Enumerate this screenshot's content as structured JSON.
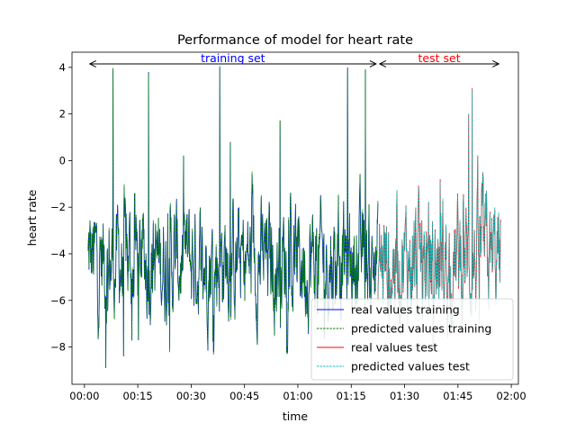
{
  "chart_data": {
    "type": "line",
    "title": "Performance of model for heart rate",
    "xlabel": "time",
    "ylabel": "heart rate",
    "x_unit": "minutes",
    "xlim": [
      -3.5,
      122
    ],
    "ylim": [
      -9.6,
      4.65
    ],
    "xticks": [
      {
        "value": 0,
        "label": "00:00"
      },
      {
        "value": 15,
        "label": "00:15"
      },
      {
        "value": 30,
        "label": "00:30"
      },
      {
        "value": 45,
        "label": "00:45"
      },
      {
        "value": 60,
        "label": "01:00"
      },
      {
        "value": 75,
        "label": "01:15"
      },
      {
        "value": 90,
        "label": "01:30"
      },
      {
        "value": 105,
        "label": "01:45"
      },
      {
        "value": 120,
        "label": "02:00"
      }
    ],
    "yticks": [
      -8,
      -6,
      -4,
      -2,
      0,
      2,
      4
    ],
    "grid": false,
    "legend_position": "lower-right",
    "training_range": [
      1,
      82.5
    ],
    "test_range": [
      82.5,
      117
    ],
    "base_level": -4.3,
    "annotations": [
      {
        "text": "training set",
        "from": 1.5,
        "to": 82,
        "y": 4.15,
        "color": "#0000ff"
      },
      {
        "text": "test set",
        "from": 83,
        "to": 116.5,
        "y": 4.15,
        "color": "#ff0000"
      }
    ],
    "series": [
      {
        "name": "real values training",
        "color": "#0000ff",
        "style": "solid"
      },
      {
        "name": "predicted values training",
        "color": "#008000",
        "style": "dashed"
      },
      {
        "name": "real values test",
        "color": "#ff0000",
        "style": "solid"
      },
      {
        "name": "predicted values test",
        "color": "#00bfbf",
        "style": "dashed"
      }
    ],
    "peaks_training": [
      {
        "x": 8,
        "y": 3.9
      },
      {
        "x": 18,
        "y": 3.8
      },
      {
        "x": 38,
        "y": 4.0
      },
      {
        "x": 74,
        "y": 4.0
      },
      {
        "x": 79,
        "y": 3.9
      },
      {
        "x": 55,
        "y": 1.7
      },
      {
        "x": 41,
        "y": 0.8
      },
      {
        "x": 6,
        "y": -8.9
      },
      {
        "x": 11,
        "y": -8.4
      },
      {
        "x": 24,
        "y": -8.1
      }
    ],
    "peaks_test": [
      {
        "x": 109,
        "y": 3.1
      },
      {
        "x": 108,
        "y": 2.0
      },
      {
        "x": 113,
        "y": -1.3
      },
      {
        "x": 100,
        "y": -0.8
      },
      {
        "x": 95,
        "y": -6.8
      },
      {
        "x": 111,
        "y": -7.0
      }
    ]
  }
}
